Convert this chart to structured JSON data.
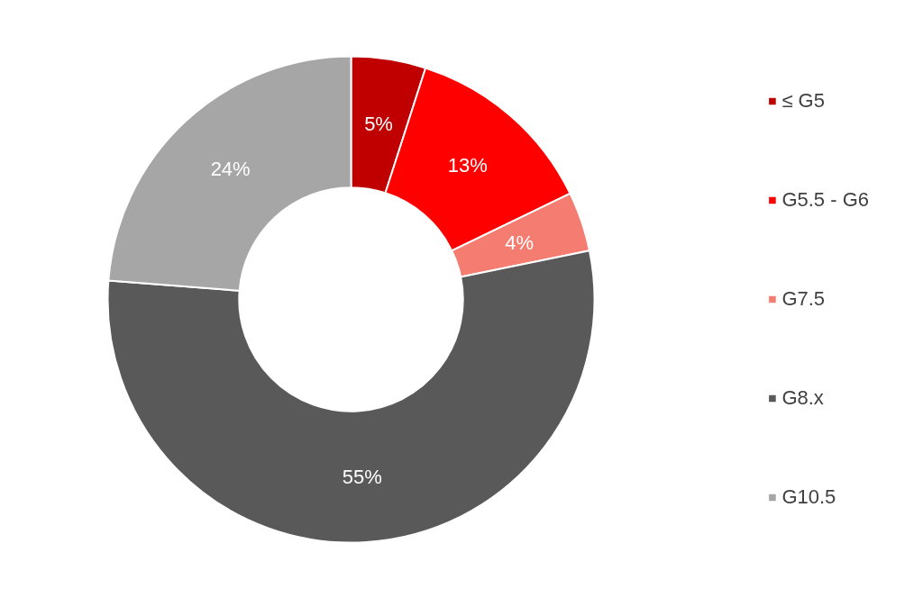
{
  "chart_data": {
    "type": "donut",
    "categories": [
      "≤ G5",
      "G5.5 - G6",
      "G7.5",
      "G8.x",
      "G10.5"
    ],
    "values": [
      5,
      13,
      4,
      55,
      24
    ],
    "value_labels": [
      "5%",
      "13%",
      "4%",
      "55%",
      "24%"
    ],
    "colors": [
      "#c00000",
      "#ff0000",
      "#f47c70",
      "#595959",
      "#a6a6a6"
    ],
    "legend": "right"
  }
}
